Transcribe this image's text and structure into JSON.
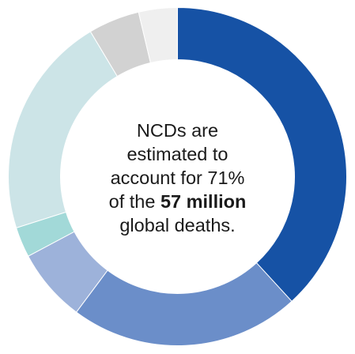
{
  "chart_data": {
    "type": "pie",
    "variant": "donut",
    "start": "12 o'clock",
    "direction": "clockwise",
    "categories": [
      "",
      "",
      "",
      "",
      "",
      "",
      ""
    ],
    "values": [
      38.2,
      22.0,
      7.0,
      2.9,
      21.3,
      4.9,
      3.7
    ],
    "colors": [
      "#1652a5",
      "#6b8ec9",
      "#9db2da",
      "#a2d9d8",
      "#cce4e7",
      "#d2d2d2",
      "#efefef"
    ],
    "center_text": {
      "line1": "NCDs are",
      "line2": "estimated to",
      "line3": "account for 71%",
      "line4_pre": "of the ",
      "line4_bold": "57 million",
      "line5": "global deaths."
    }
  }
}
